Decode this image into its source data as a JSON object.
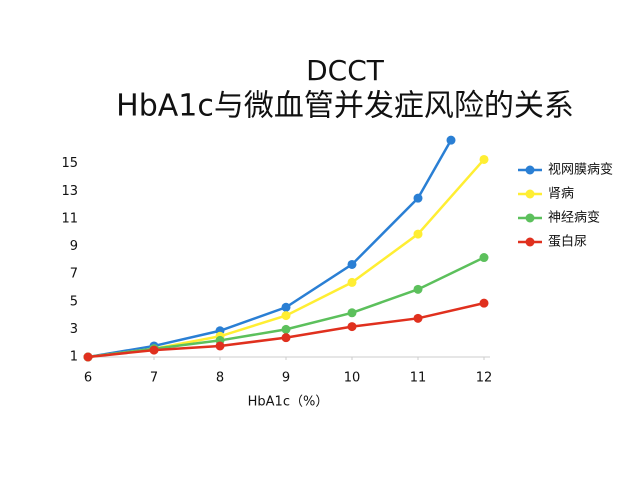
{
  "chart_data": {
    "type": "line",
    "title": "DCCT",
    "subtitle": "HbA1c与微血管并发症风险的关系",
    "x_label": "HbA1c（%）",
    "xlim": [
      6,
      12
    ],
    "xticks": [
      6,
      7,
      8,
      9,
      10,
      11,
      12
    ],
    "ylim": [
      1,
      17
    ],
    "yticks": [
      1,
      3,
      5,
      7,
      9,
      11,
      13,
      15
    ],
    "legend": "right",
    "series": [
      {
        "name": "视网膜病变",
        "color": "#2a7fd4",
        "x": [
          6,
          7,
          8,
          9,
          10,
          11,
          11.5
        ],
        "values": [
          1,
          1.8,
          2.9,
          4.6,
          7.7,
          12.5,
          16.7
        ]
      },
      {
        "name": "肾病",
        "color": "#ffee33",
        "x": [
          6,
          7,
          8,
          9,
          10,
          11,
          12
        ],
        "values": [
          1,
          1.6,
          2.5,
          4.0,
          6.4,
          9.9,
          15.3
        ]
      },
      {
        "name": "神经病变",
        "color": "#5cc05c",
        "x": [
          6,
          7,
          8,
          9,
          10,
          11,
          12
        ],
        "values": [
          1,
          1.6,
          2.2,
          3.0,
          4.2,
          5.9,
          8.2
        ]
      },
      {
        "name": "蛋白尿",
        "color": "#e0301e",
        "x": [
          6,
          7,
          8,
          9,
          10,
          11,
          12
        ],
        "values": [
          1,
          1.5,
          1.8,
          2.4,
          3.2,
          3.8,
          4.9
        ]
      }
    ]
  }
}
